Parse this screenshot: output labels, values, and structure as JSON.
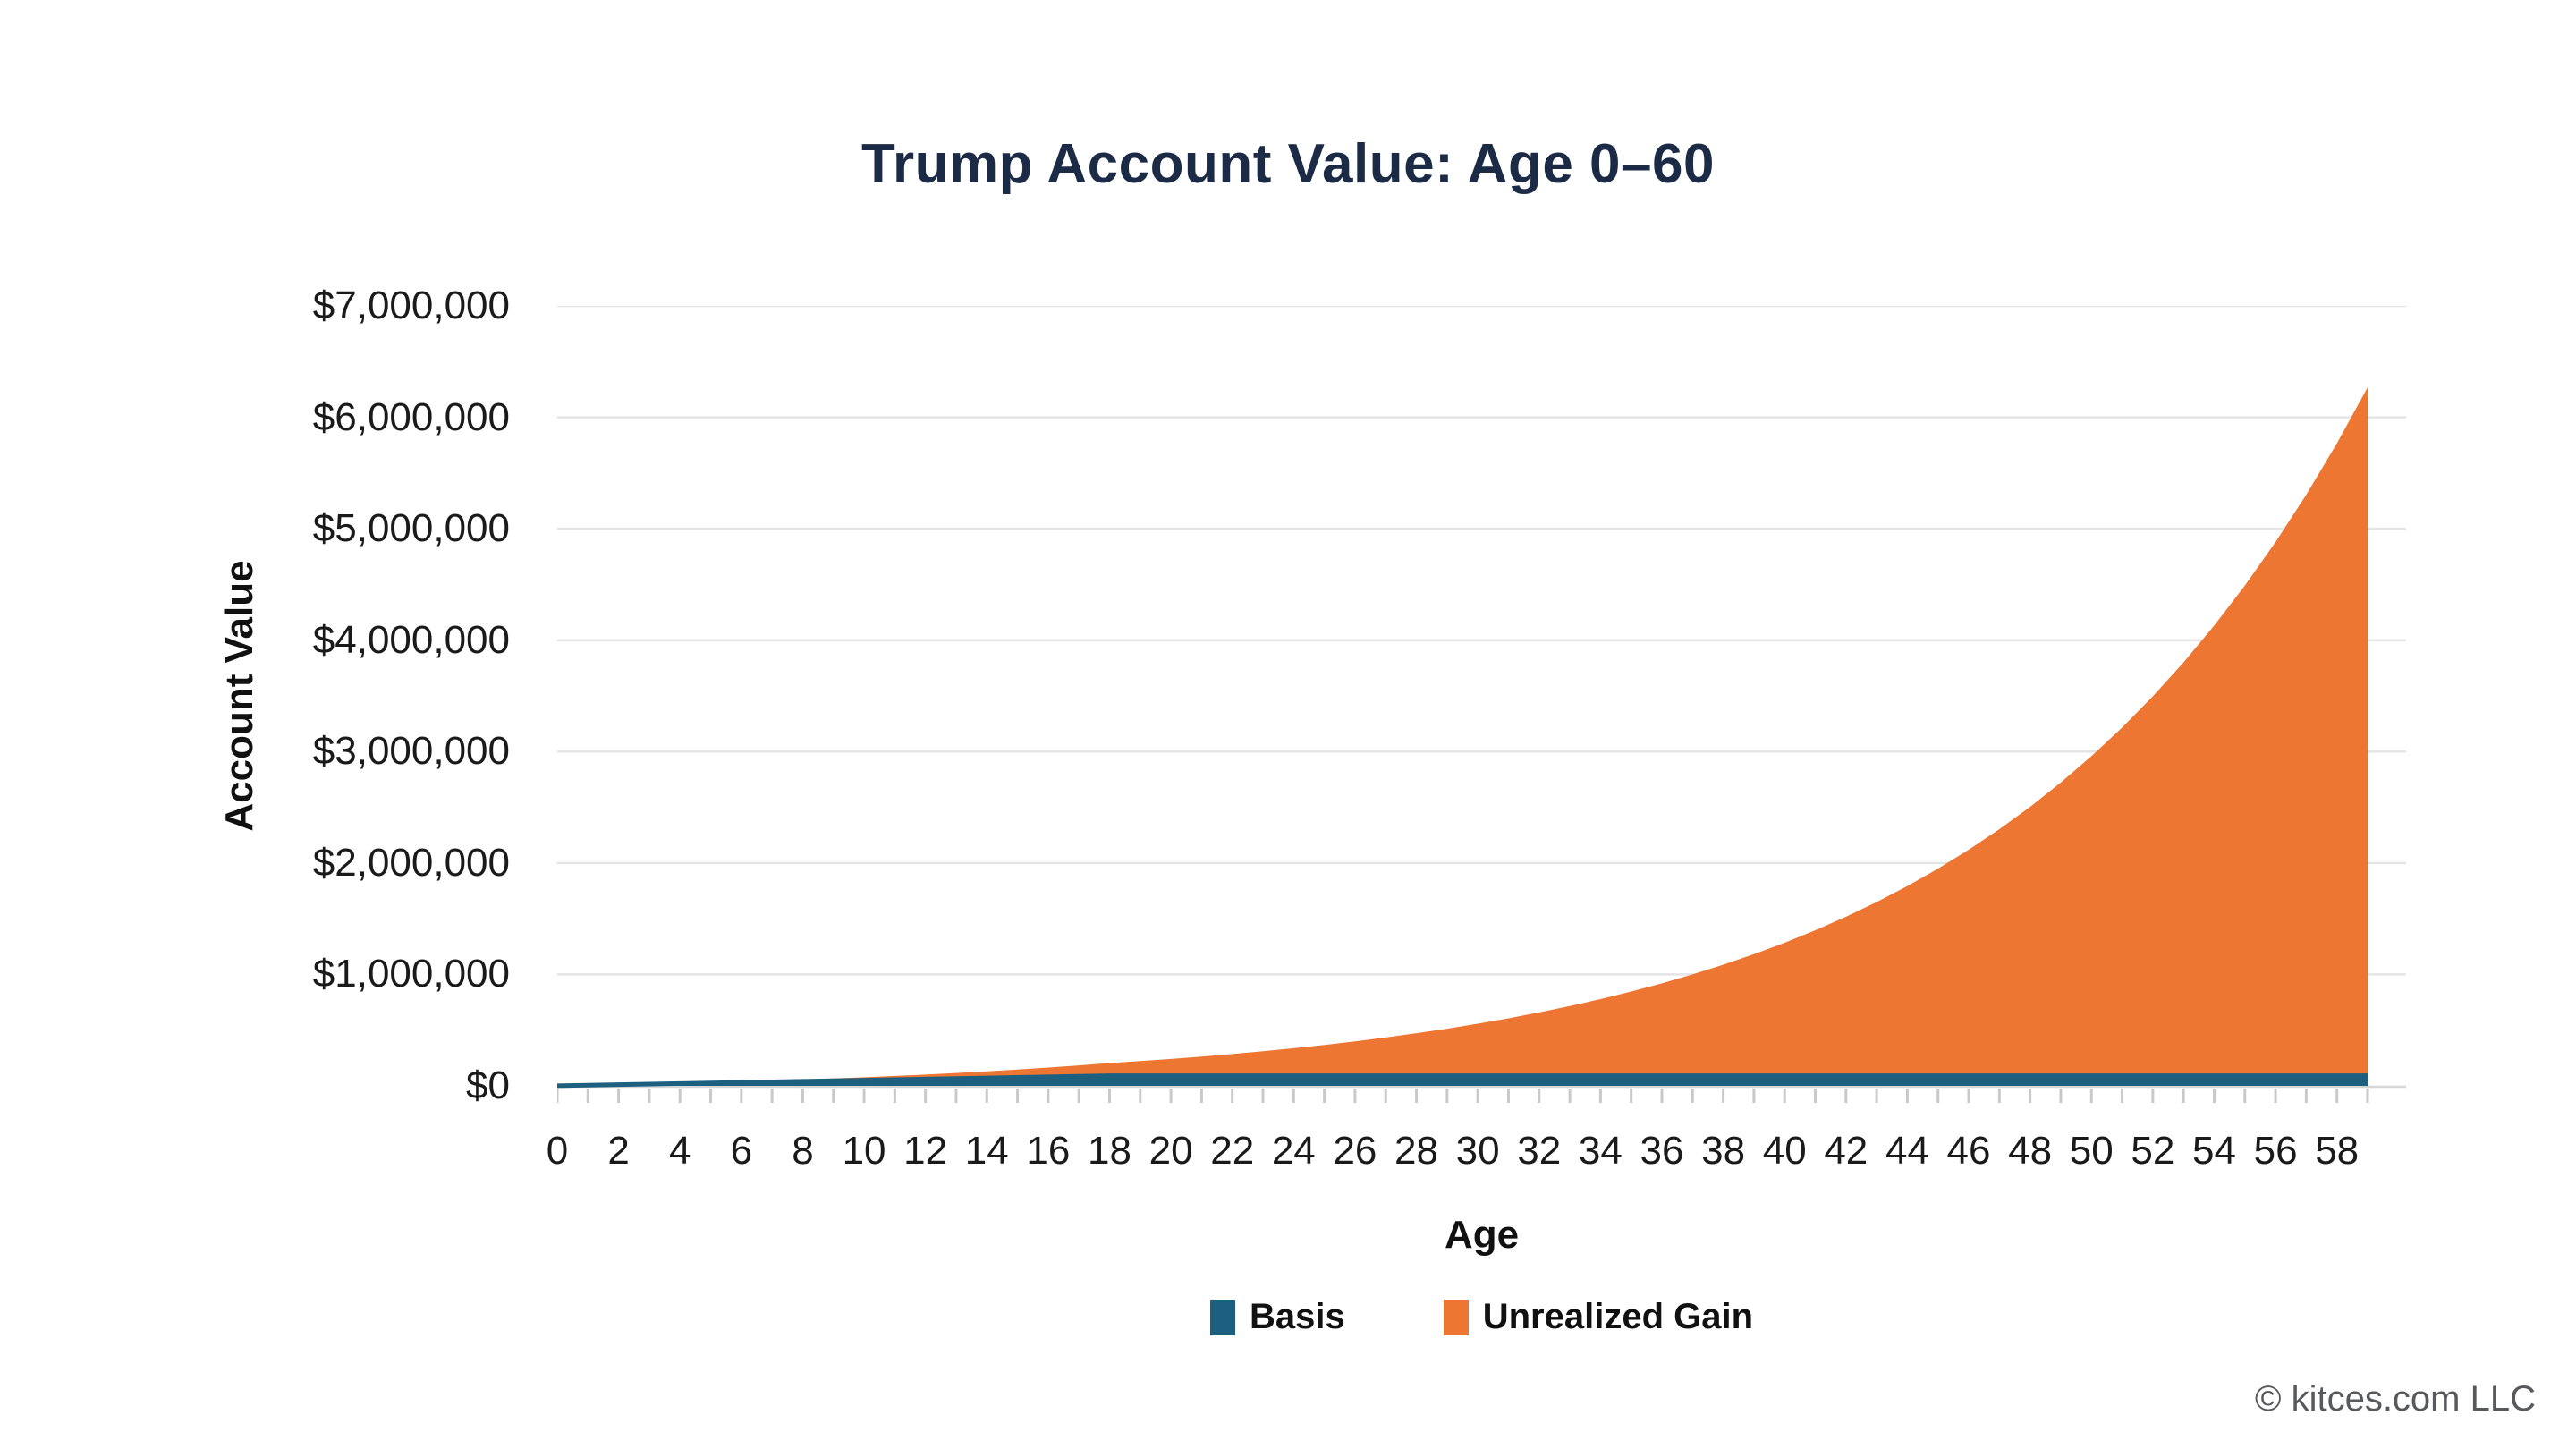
{
  "page": {
    "copyright": "© kitces.com LLC"
  },
  "chart_data": {
    "type": "area",
    "stacked": true,
    "title": "Trump Account Value: Age 0–60",
    "xlabel": "Age",
    "ylabel": "Account Value",
    "ylim": [
      0,
      7000000
    ],
    "grid": true,
    "legend_position": "bottom",
    "y_tick_labels": [
      "$7,000,000",
      "$6,000,000",
      "$5,000,000",
      "$4,000,000",
      "$3,000,000",
      "$2,000,000",
      "$1,000,000",
      "$0"
    ],
    "x_tick_labels": [
      "0",
      "2",
      "4",
      "6",
      "8",
      "10",
      "12",
      "14",
      "16",
      "18",
      "20",
      "22",
      "24",
      "26",
      "28",
      "30",
      "32",
      "34",
      "36",
      "38",
      "40",
      "42",
      "44",
      "46",
      "48",
      "50",
      "52",
      "54",
      "56",
      "58"
    ],
    "x": [
      0,
      1,
      2,
      3,
      4,
      5,
      6,
      7,
      8,
      9,
      10,
      11,
      12,
      13,
      14,
      15,
      16,
      17,
      18,
      19,
      20,
      21,
      22,
      23,
      24,
      25,
      26,
      27,
      28,
      29,
      30,
      31,
      32,
      33,
      34,
      35,
      36,
      37,
      38,
      39,
      40,
      41,
      42,
      43,
      44,
      45,
      46,
      47,
      48,
      49,
      50,
      51,
      52,
      53,
      54,
      55,
      56,
      57,
      58,
      59
    ],
    "legend": [
      {
        "label": "Basis",
        "color": "#1D5F7E"
      },
      {
        "label": "Unrealized Gain",
        "color": "#EE7633"
      }
    ],
    "series": [
      {
        "name": "Basis",
        "color": "#1D5F7E",
        "values": [
          1000,
          6000,
          11000,
          16000,
          21000,
          26000,
          31000,
          36000,
          41000,
          46000,
          51000,
          56000,
          61000,
          66000,
          71000,
          76000,
          81000,
          86000,
          91000,
          91000,
          91000,
          91000,
          91000,
          91000,
          91000,
          91000,
          91000,
          91000,
          91000,
          91000,
          91000,
          91000,
          91000,
          91000,
          91000,
          91000,
          91000,
          91000,
          91000,
          91000,
          91000,
          91000,
          91000,
          91000,
          91000,
          91000,
          91000,
          91000,
          91000,
          91000,
          91000,
          91000,
          91000,
          91000,
          91000,
          91000,
          91000,
          91000,
          91000,
          91000
        ]
      },
      {
        "name": "Unrealized Gain",
        "color": "#EE7633",
        "values": [
          0,
          87,
          617,
          1628,
          3162,
          5264,
          7984,
          11376,
          15498,
          20413,
          26191,
          32907,
          40642,
          49485,
          59532,
          70888,
          83668,
          97994,
          114001,
          131836,
          151223,
          172296,
          195203,
          220103,
          247169,
          276589,
          308570,
          343332,
          381119,
          422193,
          466841,
          515373,
          568128,
          625472,
          687805,
          755561,
          829212,
          909270,
          996294,
          1090889,
          1193713,
          1305483,
          1426977,
          1559041,
          1702595,
          1858638,
          2028257,
          2212632,
          2413048,
          2630900,
          2867705,
          3125112,
          3404914,
          3709058,
          4039663,
          4399031,
          4789664,
          5214282,
          5675841,
          6177556
        ]
      }
    ],
    "total_account_value": [
      1000,
      6087,
      11617,
      17628,
      24162,
      31264,
      38984,
      47376,
      56498,
      66413,
      77191,
      88907,
      101642,
      115485,
      130532,
      146888,
      164668,
      183994,
      205001,
      222836,
      242223,
      263296,
      286203,
      311103,
      338169,
      367589,
      399570,
      434332,
      472119,
      513193,
      557841,
      606373,
      659128,
      716472,
      778805,
      846561,
      920212,
      1000270,
      1087294,
      1181889,
      1284713,
      1396483,
      1517977,
      1650041,
      1793595,
      1949638,
      2119257,
      2303632,
      2504048,
      2721900,
      2958705,
      3216112,
      3495914,
      3800058,
      4130663,
      4490031,
      4880664,
      5305282,
      5766841,
      6268556
    ]
  },
  "colors": {
    "title": "#1B2A45",
    "gridline": "#E4E4E4",
    "axis_line": "#D6D6D6",
    "tick_mark": "#C9C9C9",
    "tick_label": "#1a1a1a",
    "copyright": "#58595B",
    "background": "#ffffff"
  }
}
